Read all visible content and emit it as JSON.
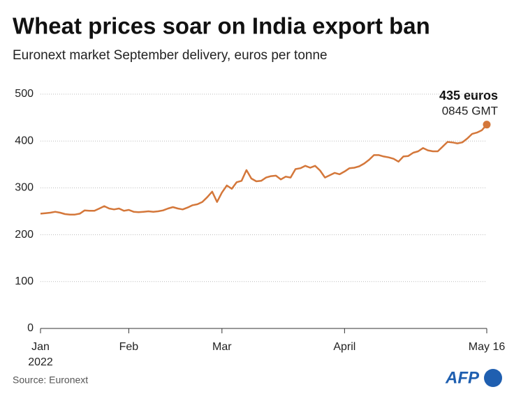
{
  "chart_data": {
    "type": "line",
    "title": "Wheat prices soar on India export ban",
    "subtitle": "Euronext market September delivery, euros per tonne",
    "source": "Source:  Euronext",
    "logo": "AFP",
    "annotation": {
      "title": "435 euros",
      "text": "0845 GMT"
    },
    "categories": [
      "Jan\n2022",
      null,
      null,
      null,
      null,
      null,
      null,
      null,
      null,
      null,
      null,
      null,
      null,
      null,
      null,
      null,
      null,
      null,
      "Feb",
      null,
      null,
      null,
      null,
      null,
      null,
      null,
      null,
      null,
      null,
      null,
      null,
      null,
      null,
      null,
      null,
      null,
      null,
      "Mar",
      null,
      null,
      null,
      null,
      null,
      null,
      null,
      null,
      null,
      null,
      null,
      null,
      null,
      null,
      null,
      null,
      null,
      null,
      null,
      null,
      null,
      null,
      null,
      null,
      "April",
      null,
      null,
      null,
      null,
      null,
      null,
      null,
      null,
      null,
      null,
      null,
      null,
      null,
      null,
      null,
      null,
      null,
      null,
      null,
      null,
      null,
      null,
      null,
      null,
      null,
      null,
      null,
      null,
      "May 16"
    ],
    "values": [
      245,
      246,
      247,
      249,
      247,
      244,
      243,
      243,
      245,
      252,
      251,
      251,
      256,
      261,
      256,
      254,
      256,
      251,
      253,
      249,
      248,
      249,
      250,
      249,
      250,
      252,
      256,
      259,
      256,
      254,
      258,
      263,
      265,
      270,
      280,
      292,
      270,
      290,
      305,
      298,
      312,
      315,
      338,
      320,
      314,
      315,
      322,
      325,
      326,
      318,
      324,
      322,
      340,
      342,
      347,
      343,
      347,
      337,
      322,
      327,
      332,
      329,
      335,
      342,
      343,
      346,
      352,
      360,
      370,
      370,
      367,
      365,
      362,
      356,
      367,
      368,
      375,
      378,
      385,
      380,
      378,
      378,
      388,
      398,
      397,
      395,
      397,
      405,
      415,
      418,
      423,
      435
    ],
    "color": "#d4773a",
    "ylim": [
      0,
      500
    ],
    "yticks": [
      0,
      100,
      200,
      300,
      400,
      500
    ],
    "grid": true
  }
}
